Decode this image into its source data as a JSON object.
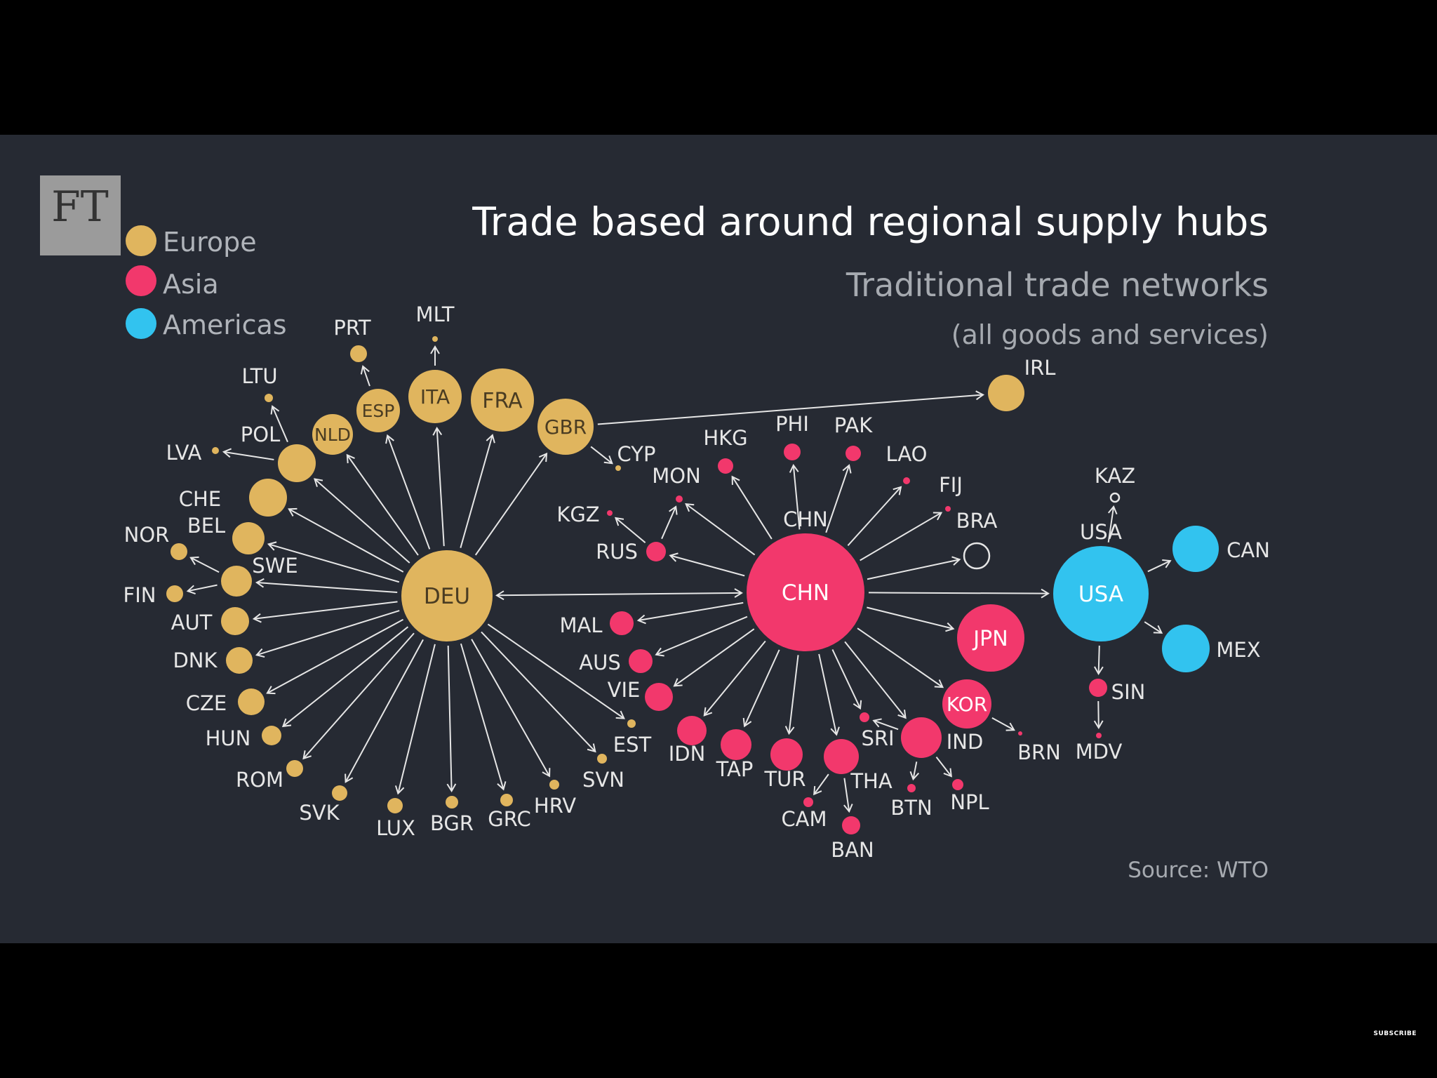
{
  "header": {
    "logo": "FT",
    "title": "Trade based around regional supply hubs",
    "subtitle": "Traditional trade networks",
    "subtitle2": "(all goods and services)",
    "source": "Source: WTO",
    "subscribe": "SUBSCRIBE"
  },
  "legend": [
    {
      "key": "europe",
      "label": "Europe",
      "color": "#e0b55e"
    },
    {
      "key": "asia",
      "label": "Asia",
      "color": "#f2386c"
    },
    {
      "key": "americas",
      "label": "Americas",
      "color": "#32c3ef"
    }
  ],
  "nodes": [
    {
      "id": "DEU",
      "r": 3,
      "hub": true
    },
    {
      "id": "CHN",
      "r": 3,
      "hub": true
    },
    {
      "id": "USA",
      "r": 3,
      "hub": true
    },
    {
      "id": "GBR",
      "r": 2
    },
    {
      "id": "FRA",
      "r": 2
    },
    {
      "id": "ITA",
      "r": 2
    },
    {
      "id": "ESP",
      "r": 2
    },
    {
      "id": "NLD",
      "r": 2
    },
    {
      "id": "POL",
      "r": 2
    },
    {
      "id": "CHE",
      "r": 2
    },
    {
      "id": "BEL",
      "r": 2
    },
    {
      "id": "SWE",
      "r": 2
    },
    {
      "id": "AUT",
      "r": 2
    },
    {
      "id": "DNK",
      "r": 2
    },
    {
      "id": "CZE",
      "r": 2
    },
    {
      "id": "HUN",
      "r": 1
    },
    {
      "id": "ROM",
      "r": 1
    },
    {
      "id": "SVK",
      "r": 1
    },
    {
      "id": "LUX",
      "r": 1
    },
    {
      "id": "BGR",
      "r": 1
    },
    {
      "id": "GRC",
      "r": 1
    },
    {
      "id": "HRV",
      "r": 1
    },
    {
      "id": "SVN",
      "r": 1
    },
    {
      "id": "EST",
      "r": 1
    },
    {
      "id": "PRT",
      "r": 1
    },
    {
      "id": "MLT",
      "r": 0
    },
    {
      "id": "LTU",
      "r": 0
    },
    {
      "id": "LVA",
      "r": 0
    },
    {
      "id": "NOR",
      "r": 1
    },
    {
      "id": "FIN",
      "r": 1
    },
    {
      "id": "CYP",
      "r": 0
    },
    {
      "id": "IRL",
      "r": 2
    },
    {
      "id": "HKG",
      "r": 1
    },
    {
      "id": "PHI",
      "r": 1
    },
    {
      "id": "PAK",
      "r": 1
    },
    {
      "id": "LAO",
      "r": 0
    },
    {
      "id": "FIJ",
      "r": 0
    },
    {
      "id": "BRA",
      "r": 2,
      "hollow": true
    },
    {
      "id": "MON",
      "r": 0
    },
    {
      "id": "KGZ",
      "r": 0
    },
    {
      "id": "RUS",
      "r": 1
    },
    {
      "id": "MAL",
      "r": 1
    },
    {
      "id": "AUS",
      "r": 1
    },
    {
      "id": "VIE",
      "r": 2
    },
    {
      "id": "IDN",
      "r": 2
    },
    {
      "id": "TAP",
      "r": 2
    },
    {
      "id": "TUR",
      "r": 2
    },
    {
      "id": "THA",
      "r": 2
    },
    {
      "id": "CAM",
      "r": 0
    },
    {
      "id": "BAN",
      "r": 1
    },
    {
      "id": "SRI",
      "r": 0
    },
    {
      "id": "IND",
      "r": 2
    },
    {
      "id": "BTN",
      "r": 0
    },
    {
      "id": "NPL",
      "r": 0
    },
    {
      "id": "KOR",
      "r": 2
    },
    {
      "id": "JPN",
      "r": 2
    },
    {
      "id": "BRN",
      "r": 0
    },
    {
      "id": "KAZ",
      "r": 0,
      "hollow": true
    },
    {
      "id": "CAN",
      "r": 2
    },
    {
      "id": "MEX",
      "r": 2
    },
    {
      "id": "SIN",
      "r": 1
    },
    {
      "id": "MDV",
      "r": 0
    }
  ],
  "links": [
    [
      "DEU",
      "CHN",
      "both"
    ],
    [
      "CHN",
      "USA",
      "to"
    ],
    [
      "GBR",
      "IRL",
      "to"
    ],
    [
      "GBR",
      "CYP",
      "to"
    ],
    [
      "ESP",
      "PRT",
      "to"
    ],
    [
      "ITA",
      "MLT",
      "to"
    ],
    [
      "POL",
      "LTU",
      "to"
    ],
    [
      "POL",
      "LVA",
      "to"
    ],
    [
      "SWE",
      "NOR",
      "to"
    ],
    [
      "SWE",
      "FIN",
      "to"
    ],
    [
      "DEU",
      "GBR",
      "to"
    ],
    [
      "DEU",
      "FRA",
      "to"
    ],
    [
      "DEU",
      "ITA",
      "to"
    ],
    [
      "DEU",
      "ESP",
      "to"
    ],
    [
      "DEU",
      "NLD",
      "to"
    ],
    [
      "DEU",
      "POL",
      "to"
    ],
    [
      "DEU",
      "CHE",
      "to"
    ],
    [
      "DEU",
      "BEL",
      "to"
    ],
    [
      "DEU",
      "SWE",
      "to"
    ],
    [
      "DEU",
      "AUT",
      "to"
    ],
    [
      "DEU",
      "DNK",
      "to"
    ],
    [
      "DEU",
      "CZE",
      "to"
    ],
    [
      "DEU",
      "HUN",
      "to"
    ],
    [
      "DEU",
      "ROM",
      "to"
    ],
    [
      "DEU",
      "SVK",
      "to"
    ],
    [
      "DEU",
      "LUX",
      "to"
    ],
    [
      "DEU",
      "BGR",
      "to"
    ],
    [
      "DEU",
      "GRC",
      "to"
    ],
    [
      "DEU",
      "HRV",
      "to"
    ],
    [
      "DEU",
      "SVN",
      "to"
    ],
    [
      "DEU",
      "EST",
      "to"
    ],
    [
      "CHN",
      "HKG",
      "to"
    ],
    [
      "CHN",
      "PHI",
      "to"
    ],
    [
      "CHN",
      "PAK",
      "to"
    ],
    [
      "CHN",
      "LAO",
      "to"
    ],
    [
      "CHN",
      "FIJ",
      "to"
    ],
    [
      "CHN",
      "BRA",
      "to"
    ],
    [
      "CHN",
      "MON",
      "to"
    ],
    [
      "CHN",
      "RUS",
      "to"
    ],
    [
      "RUS",
      "KGZ",
      "to"
    ],
    [
      "RUS",
      "MON",
      "to"
    ],
    [
      "CHN",
      "MAL",
      "to"
    ],
    [
      "CHN",
      "AUS",
      "to"
    ],
    [
      "CHN",
      "VIE",
      "to"
    ],
    [
      "CHN",
      "IDN",
      "to"
    ],
    [
      "CHN",
      "TAP",
      "to"
    ],
    [
      "CHN",
      "TUR",
      "to"
    ],
    [
      "CHN",
      "THA",
      "to"
    ],
    [
      "CHN",
      "SRI",
      "to"
    ],
    [
      "CHN",
      "IND",
      "to"
    ],
    [
      "CHN",
      "KOR",
      "to"
    ],
    [
      "CHN",
      "JPN",
      "to"
    ],
    [
      "THA",
      "CAM",
      "to"
    ],
    [
      "THA",
      "BAN",
      "to"
    ],
    [
      "IND",
      "SRI",
      "to"
    ],
    [
      "IND",
      "BTN",
      "to"
    ],
    [
      "IND",
      "NPL",
      "to"
    ],
    [
      "KOR",
      "BRN",
      "to"
    ],
    [
      "USA",
      "KAZ",
      "to"
    ],
    [
      "USA",
      "CAN",
      "to"
    ],
    [
      "USA",
      "MEX",
      "to"
    ],
    [
      "USA",
      "SIN",
      "to"
    ],
    [
      "SIN",
      "MDV",
      "to"
    ]
  ]
}
